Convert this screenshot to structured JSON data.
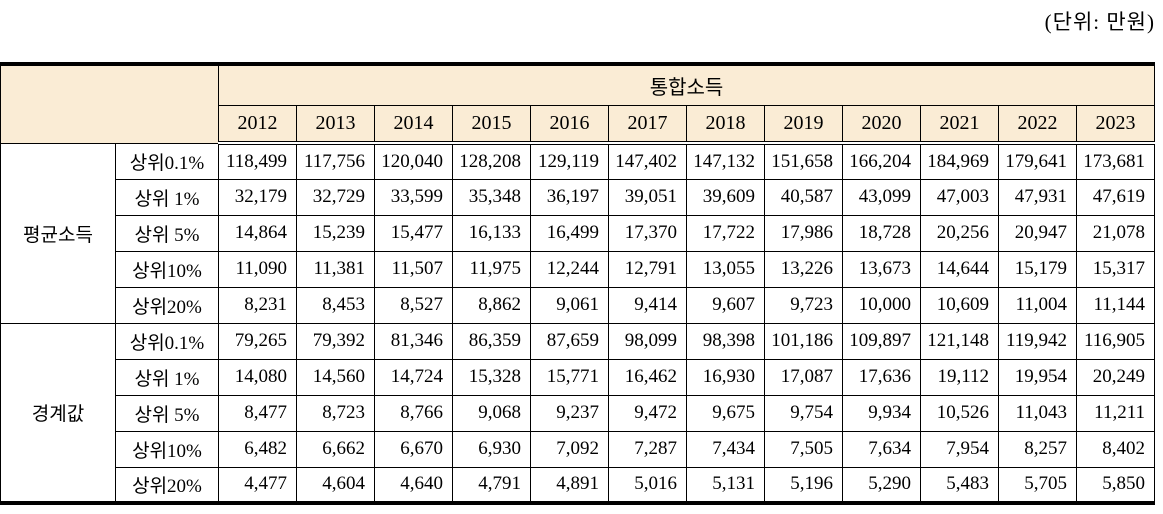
{
  "caption": "(단위:  만원)",
  "colors": {
    "header_bg": "#FAECD5",
    "border": "#000000",
    "page_bg": "#FFFFFF"
  },
  "table": {
    "header": {
      "group_title": "통합소득",
      "years": [
        "2012",
        "2013",
        "2014",
        "2015",
        "2016",
        "2017",
        "2018",
        "2019",
        "2020",
        "2021",
        "2022",
        "2023"
      ]
    },
    "groups": [
      {
        "label": "평균소득",
        "rows": [
          {
            "label": "상위0.1%",
            "values": [
              "118,499",
              "117,756",
              "120,040",
              "128,208",
              "129,119",
              "147,402",
              "147,132",
              "151,658",
              "166,204",
              "184,969",
              "179,641",
              "173,681"
            ]
          },
          {
            "label": "상위 1%",
            "values": [
              "32,179",
              "32,729",
              "33,599",
              "35,348",
              "36,197",
              "39,051",
              "39,609",
              "40,587",
              "43,099",
              "47,003",
              "47,931",
              "47,619"
            ]
          },
          {
            "label": "상위 5%",
            "values": [
              "14,864",
              "15,239",
              "15,477",
              "16,133",
              "16,499",
              "17,370",
              "17,722",
              "17,986",
              "18,728",
              "20,256",
              "20,947",
              "21,078"
            ]
          },
          {
            "label": "상위10%",
            "values": [
              "11,090",
              "11,381",
              "11,507",
              "11,975",
              "12,244",
              "12,791",
              "13,055",
              "13,226",
              "13,673",
              "14,644",
              "15,179",
              "15,317"
            ]
          },
          {
            "label": "상위20%",
            "values": [
              "8,231",
              "8,453",
              "8,527",
              "8,862",
              "9,061",
              "9,414",
              "9,607",
              "9,723",
              "10,000",
              "10,609",
              "11,004",
              "11,144"
            ]
          }
        ]
      },
      {
        "label": "경계값",
        "rows": [
          {
            "label": "상위0.1%",
            "values": [
              "79,265",
              "79,392",
              "81,346",
              "86,359",
              "87,659",
              "98,099",
              "98,398",
              "101,186",
              "109,897",
              "121,148",
              "119,942",
              "116,905"
            ]
          },
          {
            "label": "상위 1%",
            "values": [
              "14,080",
              "14,560",
              "14,724",
              "15,328",
              "15,771",
              "16,462",
              "16,930",
              "17,087",
              "17,636",
              "19,112",
              "19,954",
              "20,249"
            ]
          },
          {
            "label": "상위 5%",
            "values": [
              "8,477",
              "8,723",
              "8,766",
              "9,068",
              "9,237",
              "9,472",
              "9,675",
              "9,754",
              "9,934",
              "10,526",
              "11,043",
              "11,211"
            ]
          },
          {
            "label": "상위10%",
            "values": [
              "6,482",
              "6,662",
              "6,670",
              "6,930",
              "7,092",
              "7,287",
              "7,434",
              "7,505",
              "7,634",
              "7,954",
              "8,257",
              "8,402"
            ]
          },
          {
            "label": "상위20%",
            "values": [
              "4,477",
              "4,604",
              "4,640",
              "4,791",
              "4,891",
              "5,016",
              "5,131",
              "5,196",
              "5,290",
              "5,483",
              "5,705",
              "5,850"
            ]
          }
        ]
      }
    ]
  }
}
